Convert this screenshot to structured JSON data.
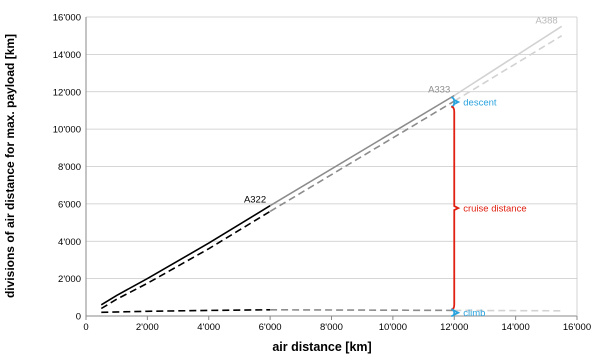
{
  "chart_data": {
    "type": "line",
    "xlabel": "air distance [km]",
    "ylabel": "divisions of air distance for max. payload [km]",
    "xlim": [
      0,
      16000
    ],
    "ylim": [
      0,
      16000
    ],
    "x_ticks": [
      0,
      2000,
      4000,
      6000,
      8000,
      10000,
      12000,
      14000,
      16000
    ],
    "y_ticks": [
      0,
      2000,
      4000,
      6000,
      8000,
      10000,
      12000,
      14000,
      16000
    ],
    "x_tick_labels": [
      "0",
      "2'000",
      "4'000",
      "6'000",
      "8'000",
      "10'000",
      "12'000",
      "14'000",
      "16'000"
    ],
    "y_tick_labels": [
      "0",
      "2'000",
      "4'000",
      "6'000",
      "8'000",
      "10'000",
      "12'000",
      "14'000",
      "16'000"
    ],
    "grid": "horizontal",
    "series": [
      {
        "name": "A322",
        "color": "#000000",
        "style": "solid",
        "x": [
          500,
          1000,
          2000,
          4000,
          6000
        ],
        "y": [
          600,
          1100,
          2000,
          3900,
          5900
        ]
      },
      {
        "color": "#000000",
        "style": "dashed",
        "x": [
          500,
          1000,
          2000,
          4000,
          6000
        ],
        "y": [
          400,
          900,
          1750,
          3600,
          5600
        ]
      },
      {
        "color": "#000000",
        "style": "dashed",
        "x": [
          500,
          2000,
          4000,
          6000
        ],
        "y": [
          200,
          250,
          300,
          330
        ]
      },
      {
        "name": "A333",
        "color": "#8c8c8c",
        "style": "solid",
        "x": [
          6000,
          12000
        ],
        "y": [
          5900,
          11800
        ]
      },
      {
        "color": "#8c8c8c",
        "style": "dashed",
        "x": [
          6000,
          12000
        ],
        "y": [
          5600,
          11500
        ]
      },
      {
        "color": "#8c8c8c",
        "style": "dashed",
        "x": [
          6000,
          12000
        ],
        "y": [
          330,
          300
        ]
      },
      {
        "name": "A388",
        "color": "#d2d2d2",
        "style": "solid",
        "x": [
          12000,
          15500
        ],
        "y": [
          11800,
          15500
        ]
      },
      {
        "color": "#d2d2d2",
        "style": "dashed",
        "x": [
          12000,
          15500
        ],
        "y": [
          11500,
          15000
        ]
      },
      {
        "color": "#d2d2d2",
        "style": "dashed",
        "x": [
          12000,
          15500
        ],
        "y": [
          300,
          280
        ]
      }
    ],
    "annotations": [
      {
        "text": "descent",
        "color": "#29a3dd",
        "from": 11200,
        "to": 11700
      },
      {
        "text": "cruise distance",
        "color": "#e02010",
        "from": 350,
        "to": 11200
      },
      {
        "text": "climb",
        "color": "#29a3dd",
        "from": 0,
        "to": 350
      }
    ],
    "bracket_x": 12000
  }
}
